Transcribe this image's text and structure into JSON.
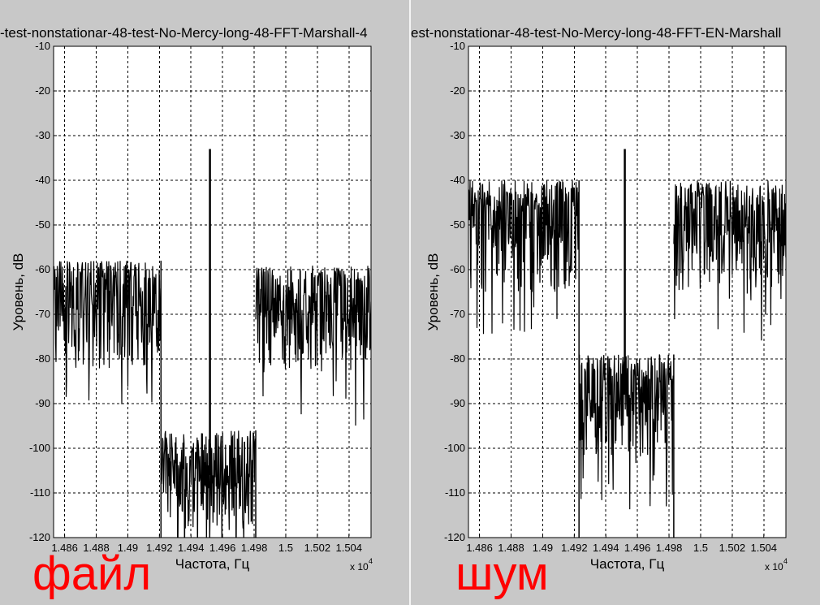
{
  "chart_data": [
    {
      "type": "line",
      "title": "-test-nonstationar-48-test-No-Mercy-long-48-FFT-Marshall-4",
      "xlabel": "Частота, Гц",
      "ylabel": "Уровень, dB",
      "x_multiplier": "x 10",
      "x_multiplier_exp": "4",
      "xlim": [
        1.4853,
        1.5054
      ],
      "ylim": [
        -120,
        -10
      ],
      "xticks": [
        "1.486",
        "1.488",
        "1.49",
        "1.492",
        "1.494",
        "1.496",
        "1.498",
        "1.5",
        "1.502",
        "1.504"
      ],
      "xtick_values": [
        1.486,
        1.488,
        1.49,
        1.492,
        1.494,
        1.496,
        1.498,
        1.5,
        1.502,
        1.504
      ],
      "yticks": [
        "-10",
        "-20",
        "-30",
        "-40",
        "-50",
        "-60",
        "-70",
        "-80",
        "-90",
        "-100",
        "-110",
        "-120"
      ],
      "ytick_values": [
        -10,
        -20,
        -30,
        -40,
        -50,
        -60,
        -70,
        -80,
        -90,
        -100,
        -110,
        -120
      ],
      "grid": true,
      "color": "#000000",
      "segments": [
        {
          "x": [
            1.4853,
            1.4921
          ],
          "mean": -68,
          "top": -58,
          "spread_low": -82
        },
        {
          "x": [
            1.4921,
            1.4981
          ],
          "mean": -106,
          "top": -96,
          "spread_low": -118
        },
        {
          "x": [
            1.4981,
            1.5054
          ],
          "mean": -69,
          "top": -59,
          "spread_low": -83
        }
      ],
      "spikes": [
        {
          "x": 1.4952,
          "y": -33
        }
      ],
      "annotation": "файл"
    },
    {
      "type": "line",
      "title": "est-nonstationar-48-test-No-Mercy-long-48-FFT-EN-Marshall",
      "xlabel": "Частота, Гц",
      "ylabel": "Уровень, dB",
      "x_multiplier": "x 10",
      "x_multiplier_exp": "4",
      "xlim": [
        1.4853,
        1.5054
      ],
      "ylim": [
        -120,
        -10
      ],
      "xticks": [
        "1.486",
        "1.488",
        "1.49",
        "1.492",
        "1.494",
        "1.496",
        "1.498",
        "1.5",
        "1.502",
        "1.504"
      ],
      "xtick_values": [
        1.486,
        1.488,
        1.49,
        1.492,
        1.494,
        1.496,
        1.498,
        1.5,
        1.502,
        1.504
      ],
      "yticks": [
        "-10",
        "-20",
        "-30",
        "-40",
        "-50",
        "-60",
        "-70",
        "-80",
        "-90",
        "-100",
        "-110",
        "-120"
      ],
      "ytick_values": [
        -10,
        -20,
        -30,
        -40,
        -50,
        -60,
        -70,
        -80,
        -90,
        -100,
        -110,
        -120
      ],
      "grid": true,
      "color": "#000000",
      "segments": [
        {
          "x": [
            1.4853,
            1.4923
          ],
          "mean": -50,
          "top": -40,
          "spread_low": -65
        },
        {
          "x": [
            1.4923,
            1.4983
          ],
          "mean": -88,
          "top": -79,
          "spread_low": -102
        },
        {
          "x": [
            1.4983,
            1.5054
          ],
          "mean": -50,
          "top": -40,
          "spread_low": -64
        }
      ],
      "spikes": [
        {
          "x": 1.4952,
          "y": -33
        }
      ],
      "annotation": "шум"
    }
  ]
}
